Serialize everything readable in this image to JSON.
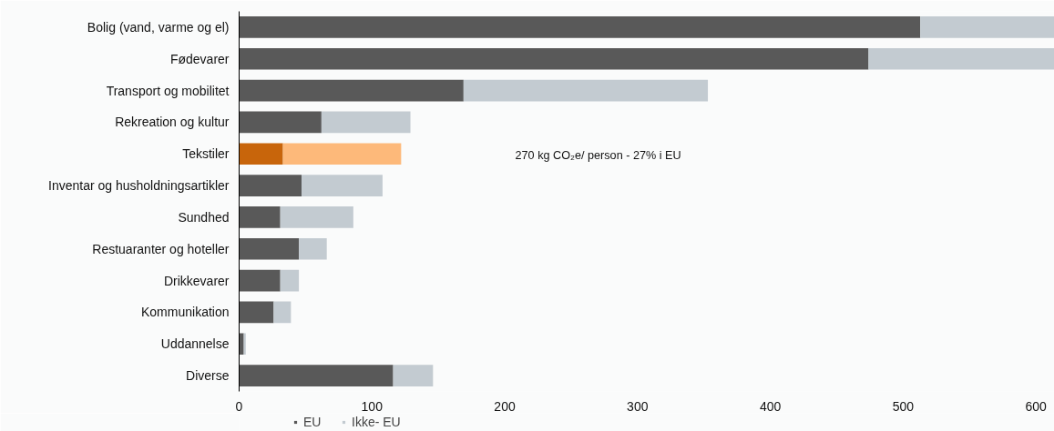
{
  "chart_data": {
    "type": "bar",
    "orientation": "horizontal",
    "stacked": true,
    "categories": [
      "Bolig (vand, varme og el)",
      "Fødevarer",
      "Transport og mobilitet",
      "Rekreation og kultur",
      "Tekstiler",
      "Inventar og husholdningsartikler",
      "Sundhed",
      "Restuaranter og hoteller",
      "Drikkevarer",
      "Kommunikation",
      "Uddannelse",
      "Diverse"
    ],
    "series": [
      {
        "name": "EU",
        "color": "#595959",
        "colors": [
          "#595959",
          "#595959",
          "#595959",
          "#595959",
          "#c8650b",
          "#595959",
          "#595959",
          "#595959",
          "#595959",
          "#595959",
          "#595959",
          "#595959"
        ],
        "values": [
          513,
          474,
          169,
          62,
          33,
          47,
          31,
          45,
          31,
          26,
          3.5,
          116
        ]
      },
      {
        "name": "Ikke- EU",
        "color": "#c3cbd1",
        "colors": [
          "#c3cbd1",
          "#c3cbd1",
          "#c3cbd1",
          "#c3cbd1",
          "#fdb97a",
          "#c3cbd1",
          "#c3cbd1",
          "#c3cbd1",
          "#c3cbd1",
          "#c3cbd1",
          "#c3cbd1",
          "#c3cbd1"
        ],
        "values": [
          101,
          140,
          184,
          67,
          89,
          61,
          55,
          21,
          14,
          13,
          1.5,
          30
        ]
      }
    ],
    "xlim": [
      0,
      614
    ],
    "xticks": [
      0,
      100,
      200,
      300,
      400,
      500,
      600
    ],
    "annotations": [
      "270 kg CO₂e/ person - 27% i EU"
    ],
    "legend": "bottom left",
    "grid": false
  }
}
